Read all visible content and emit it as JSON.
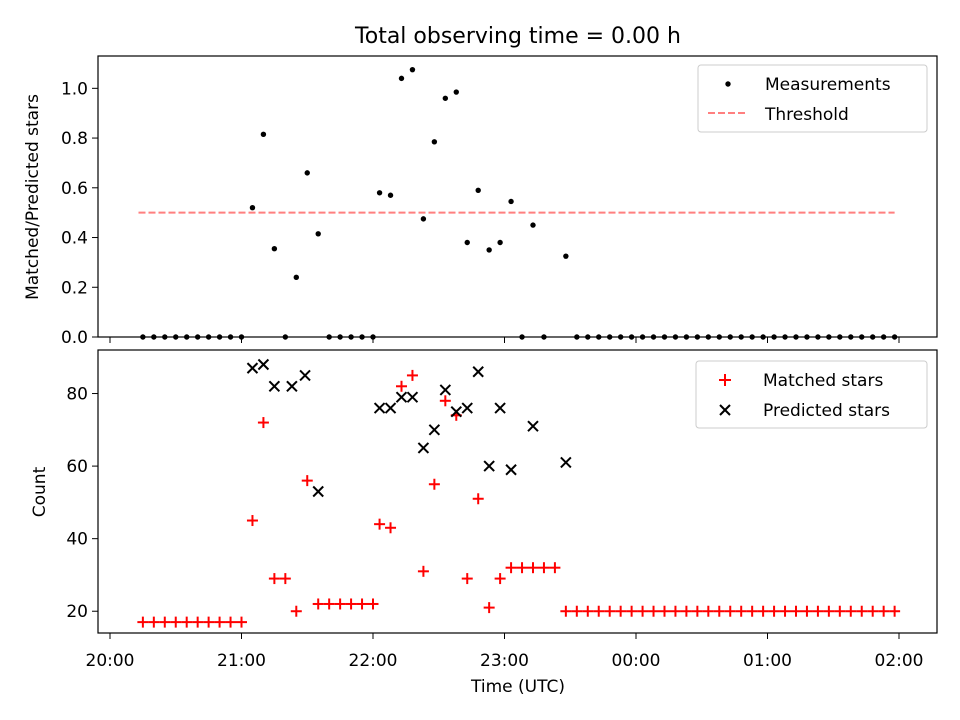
{
  "chart_data": [
    {
      "type": "scatter",
      "title": "Total observing time = 0.00 h",
      "xlabel": "",
      "ylabel": "Matched/Predicted stars",
      "ylim": [
        0,
        1.13
      ],
      "yticks": [
        0.0,
        0.2,
        0.4,
        0.6,
        0.8,
        1.0
      ],
      "ytick_labels": [
        "0.0",
        "0.2",
        "0.4",
        "0.6",
        "0.8",
        "1.0"
      ],
      "legend_position": "top-right",
      "legend": [
        "Measurements",
        "Threshold"
      ],
      "series": [
        {
          "name": "Measurements",
          "marker": "dot",
          "color": "#000000",
          "x": [
            "20:15",
            "20:20",
            "20:25",
            "20:30",
            "20:35",
            "20:40",
            "20:45",
            "20:50",
            "20:55",
            "21:00",
            "21:05",
            "21:10",
            "21:15",
            "21:20",
            "21:25",
            "21:30",
            "21:35",
            "21:40",
            "21:45",
            "21:50",
            "21:55",
            "22:00",
            "22:03",
            "22:08",
            "22:13",
            "22:18",
            "22:23",
            "22:28",
            "22:33",
            "22:38",
            "22:43",
            "22:48",
            "22:53",
            "22:58",
            "23:03",
            "23:08",
            "23:13",
            "23:18",
            "23:28",
            "23:33",
            "23:38",
            "23:43",
            "23:48",
            "23:53",
            "23:58",
            "00:03",
            "00:08",
            "00:13",
            "00:18",
            "00:23",
            "00:28",
            "00:33",
            "00:38",
            "00:43",
            "00:48",
            "00:53",
            "00:58",
            "01:03",
            "01:08",
            "01:13",
            "01:18",
            "01:23",
            "01:28",
            "01:33",
            "01:38",
            "01:43",
            "01:48",
            "01:53",
            "01:58"
          ],
          "y": [
            0,
            0,
            0,
            0,
            0,
            0,
            0,
            0,
            0,
            0,
            0.52,
            0.815,
            0.355,
            0,
            0.24,
            0.66,
            0.415,
            0,
            0,
            0,
            0,
            0,
            0.58,
            0.57,
            1.04,
            1.075,
            0.475,
            0.785,
            0.96,
            0.985,
            0.38,
            0.59,
            0.35,
            0.38,
            0.545,
            0,
            0.45,
            0,
            0.325,
            0,
            0,
            0,
            0,
            0,
            0,
            0,
            0,
            0,
            0,
            0,
            0,
            0,
            0,
            0,
            0,
            0,
            0,
            0,
            0,
            0,
            0,
            0,
            0,
            0,
            0,
            0,
            0,
            0,
            0
          ]
        },
        {
          "name": "Threshold",
          "style": "dashed",
          "color": "#ff7f7f",
          "x": [
            "20:13",
            "01:58"
          ],
          "y": [
            0.5,
            0.5
          ]
        }
      ]
    },
    {
      "type": "scatter",
      "title": "",
      "xlabel": "Time (UTC)",
      "ylabel": "Count",
      "ylim": [
        14,
        92
      ],
      "yticks": [
        20,
        40,
        60,
        80
      ],
      "ytick_labels": [
        "20",
        "40",
        "60",
        "80"
      ],
      "xticks": [
        "20:00",
        "21:00",
        "22:00",
        "23:00",
        "00:00",
        "01:00",
        "02:00"
      ],
      "xtick_labels": [
        "20:00",
        "21:00",
        "22:00",
        "23:00",
        "00:00",
        "01:00",
        "02:00"
      ],
      "legend_position": "top-right",
      "legend": [
        "Matched stars",
        "Predicted stars"
      ],
      "series": [
        {
          "name": "Matched stars",
          "marker": "plus",
          "color": "#ff0000",
          "x": [
            "20:15",
            "20:20",
            "20:25",
            "20:30",
            "20:35",
            "20:40",
            "20:45",
            "20:50",
            "20:55",
            "21:00",
            "21:05",
            "21:10",
            "21:15",
            "21:20",
            "21:25",
            "21:30",
            "21:35",
            "21:40",
            "21:45",
            "21:50",
            "21:55",
            "22:00",
            "22:03",
            "22:08",
            "22:13",
            "22:18",
            "22:23",
            "22:28",
            "22:33",
            "22:38",
            "22:43",
            "22:48",
            "22:53",
            "22:58",
            "23:03",
            "23:08",
            "23:13",
            "23:18",
            "23:23",
            "23:28",
            "23:33",
            "23:38",
            "23:43",
            "23:48",
            "23:53",
            "23:58",
            "00:03",
            "00:08",
            "00:13",
            "00:18",
            "00:23",
            "00:28",
            "00:33",
            "00:38",
            "00:43",
            "00:48",
            "00:53",
            "00:58",
            "01:03",
            "01:08",
            "01:13",
            "01:18",
            "01:23",
            "01:28",
            "01:33",
            "01:38",
            "01:43",
            "01:48",
            "01:53",
            "01:58"
          ],
          "y": [
            17,
            17,
            17,
            17,
            17,
            17,
            17,
            17,
            17,
            17,
            45,
            72,
            29,
            29,
            20,
            56,
            22,
            22,
            22,
            22,
            22,
            22,
            44,
            43,
            82,
            85,
            31,
            55,
            78,
            74,
            29,
            51,
            21,
            29,
            32,
            32,
            32,
            32,
            32,
            20,
            20,
            20,
            20,
            20,
            20,
            20,
            20,
            20,
            20,
            20,
            20,
            20,
            20,
            20,
            20,
            20,
            20,
            20,
            20,
            20,
            20,
            20,
            20,
            20,
            20,
            20,
            20,
            20,
            20,
            20
          ]
        },
        {
          "name": "Predicted stars",
          "marker": "x",
          "color": "#000000",
          "x": [
            "21:05",
            "21:10",
            "21:15",
            "21:23",
            "21:29",
            "21:35",
            "22:03",
            "22:08",
            "22:13",
            "22:18",
            "22:23",
            "22:28",
            "22:33",
            "22:38",
            "22:43",
            "22:48",
            "22:53",
            "22:58",
            "23:03",
            "23:13",
            "23:28"
          ],
          "y": [
            87,
            88,
            82,
            82,
            85,
            53,
            76,
            76,
            79,
            79,
            65,
            70,
            81,
            75,
            76,
            86,
            60,
            76,
            59,
            71,
            61
          ]
        }
      ]
    }
  ]
}
